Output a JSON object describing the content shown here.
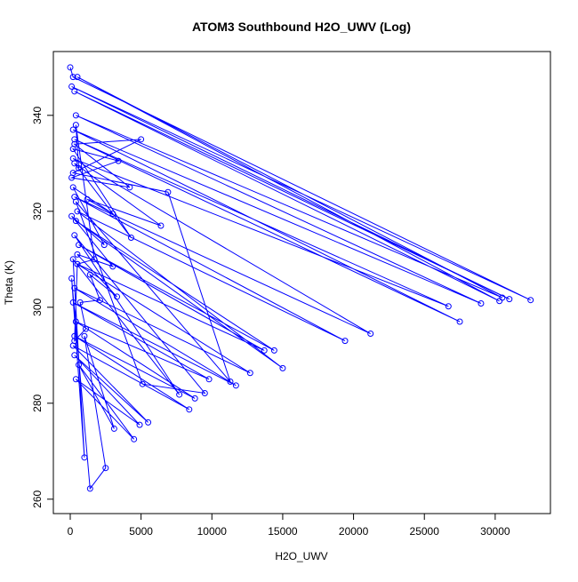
{
  "chart_data": {
    "type": "line-points",
    "title": "ATOM3 Southbound H2O_UWV (Log)",
    "x_label": "H2O_UWV",
    "y_label": "Theta (K)",
    "color": "#0000ff",
    "x": [
      0,
      200,
      32500,
      100,
      31000,
      300,
      30300,
      500,
      30500,
      400,
      29000,
      200,
      27500,
      300,
      26700,
      200,
      21200,
      300,
      19400,
      500,
      15000,
      400,
      14400,
      600,
      13700,
      500,
      12700,
      300,
      11700,
      200,
      9800,
      400,
      8800,
      300,
      8400,
      200,
      5500,
      300,
      4900,
      400,
      4500,
      600,
      3100,
      1000,
      2500,
      1400,
      100,
      1000,
      200,
      7700,
      300,
      9500,
      5100,
      400,
      11300,
      6900,
      200,
      5000,
      300,
      4200,
      100,
      3400,
      200,
      4300,
      300,
      6400,
      1200,
      3000,
      200,
      2400,
      100,
      3000,
      500,
      3300,
      1400,
      2100,
      700,
      1100,
      300,
      500,
      1700,
      400,
      600
    ],
    "values": [
      350,
      348,
      301.5,
      346,
      301.7,
      345,
      301.3,
      348,
      302,
      340,
      300.8,
      337,
      297,
      335,
      300.2,
      331,
      294.5,
      323,
      293,
      320,
      287.3,
      318,
      291,
      313,
      291,
      309,
      286.3,
      304,
      283.7,
      301,
      285,
      297,
      281,
      294,
      278.7,
      292,
      276,
      290,
      275.5,
      285,
      272.5,
      288,
      274.7,
      294,
      266.5,
      262.2,
      306,
      268.7,
      310,
      281.8,
      315,
      282.1,
      284,
      322,
      284.5,
      324,
      328,
      335,
      334,
      325,
      327,
      330.5,
      333,
      314.5,
      330,
      317,
      322.5,
      319.5,
      325,
      313,
      319,
      308.5,
      311,
      302.2,
      306.8,
      301.5,
      301,
      295.5,
      293,
      309,
      310,
      338,
      329
    ],
    "xlim": [
      -1192,
      33900
    ],
    "ylim": [
      257,
      353.3
    ],
    "xticks": [
      0,
      5000,
      10000,
      15000,
      20000,
      25000,
      30000
    ],
    "yticks": [
      260,
      280,
      300,
      320,
      340
    ]
  }
}
